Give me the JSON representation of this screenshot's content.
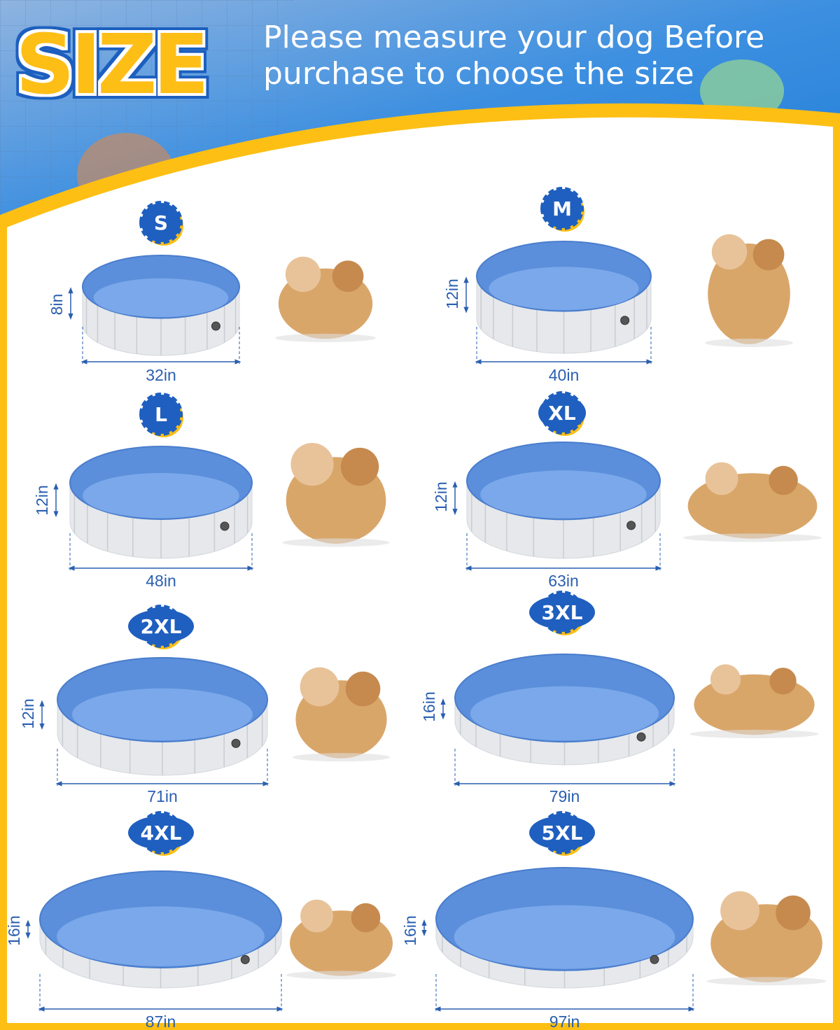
{
  "header": {
    "title": "SIZE",
    "subtitle_line1": "Please measure your dog Before",
    "subtitle_line2": "purchase to choose the size"
  },
  "colors": {
    "brand_blue": "#1f5fbf",
    "accent_yellow": "#fdbf14",
    "pool_inner_blue": "#5b8fdb",
    "pool_floor_blue": "#7aa8ea",
    "pool_wall_gray": "#e6e8eb",
    "label_blue": "#2a5fb0"
  },
  "sizes": [
    {
      "size": "S",
      "height": "8in",
      "diameter": "32in",
      "photo": "corgi-dog"
    },
    {
      "size": "M",
      "height": "12in",
      "diameter": "40in",
      "photo": "husky-dog"
    },
    {
      "size": "L",
      "height": "12in",
      "diameter": "48in",
      "photo": "girl-with-puppy"
    },
    {
      "size": "XL",
      "height": "12in",
      "diameter": "63in",
      "photo": "kids-with-golden-retriever"
    },
    {
      "size": "2XL",
      "height": "12in",
      "diameter": "71in",
      "photo": "mother-son-with-dog"
    },
    {
      "size": "3XL",
      "height": "16in",
      "diameter": "79in",
      "photo": "family-lying-with-puppy"
    },
    {
      "size": "4XL",
      "height": "16in",
      "diameter": "87in",
      "photo": "family-with-golden-retriever"
    },
    {
      "size": "5XL",
      "height": "16in",
      "diameter": "97in",
      "photo": "family-group-with-dogs"
    }
  ]
}
